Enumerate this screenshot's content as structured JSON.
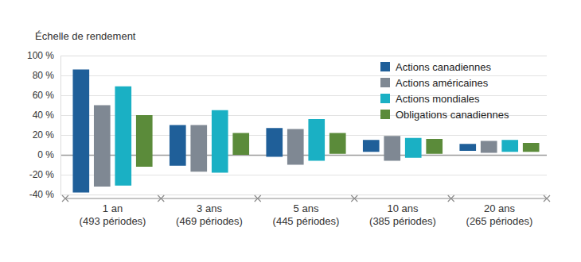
{
  "chart_data": {
    "type": "floating_bar",
    "y_label": "Échelle de rendement",
    "categories": [
      "1 an\n(493 périodes)",
      "3 ans\n(469 périodes)",
      "5 ans\n(445 périodes)",
      "10 ans\n(385 périodes)",
      "20 ans\n(265 périodes)"
    ],
    "series": [
      {
        "name": "Actions canadiennes",
        "color": "#1f5f99",
        "values": [
          [
            -38,
            86
          ],
          [
            -11,
            30
          ],
          [
            -2,
            27
          ],
          [
            3,
            15
          ],
          [
            4,
            11
          ]
        ]
      },
      {
        "name": "Actions américaines",
        "color": "#7f8893",
        "values": [
          [
            -32,
            50
          ],
          [
            -17,
            30
          ],
          [
            -10,
            26
          ],
          [
            -6,
            19
          ],
          [
            2,
            14
          ]
        ]
      },
      {
        "name": "Actions mondiales",
        "color": "#1ab0c4",
        "values": [
          [
            -31,
            69
          ],
          [
            -18,
            45
          ],
          [
            -6,
            36
          ],
          [
            -3,
            17
          ],
          [
            3,
            15
          ]
        ]
      },
      {
        "name": "Obligations canadiennes",
        "color": "#5b8b3a",
        "values": [
          [
            -12,
            40
          ],
          [
            0,
            22
          ],
          [
            1,
            22
          ],
          [
            1,
            16
          ],
          [
            3,
            12
          ]
        ]
      }
    ],
    "ylim": [
      -40,
      100
    ],
    "yticks": [
      {
        "value": -40,
        "label": "-40 %"
      },
      {
        "value": -20,
        "label": "-20 %"
      },
      {
        "value": 0,
        "label": "0 %"
      },
      {
        "value": 20,
        "label": "20 %"
      },
      {
        "value": 40,
        "label": "40 %"
      },
      {
        "value": 60,
        "label": "60 %"
      },
      {
        "value": 80,
        "label": "80 %"
      },
      {
        "value": 100,
        "label": "100 %"
      }
    ],
    "grid": true,
    "legend": "top-right"
  }
}
